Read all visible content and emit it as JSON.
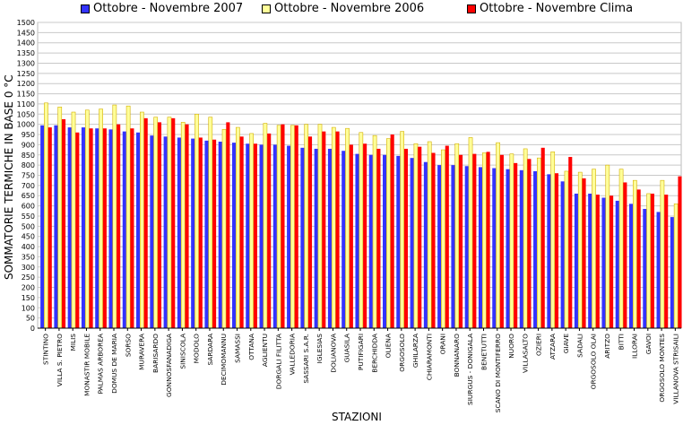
{
  "chart_data": {
    "type": "bar",
    "title": "",
    "xlabel": "STAZIONI",
    "ylabel": "SOMMATORIE TERMICHE IN BASE 0 °C",
    "ylim": [
      0,
      1500
    ],
    "yticks": [
      0,
      50,
      100,
      150,
      200,
      250,
      300,
      350,
      400,
      450,
      500,
      550,
      600,
      650,
      700,
      750,
      800,
      850,
      900,
      950,
      1000,
      1050,
      1100,
      1150,
      1200,
      1250,
      1300,
      1350,
      1400,
      1450,
      1500
    ],
    "grid": true,
    "legend": "top",
    "categories": [
      "STINTINO",
      "VILLA S. PIETRO",
      "MILIS",
      "MONASTIR MOBILE",
      "PALMAS ARBOREA",
      "DOMUS DE MARIA",
      "SORSO",
      "MURAVERA",
      "BARISARDO",
      "GONNOSFANADIGA",
      "SINISCOLA",
      "MODOLO",
      "SARDARA",
      "DECIMOMANNU",
      "SAMASSI",
      "OTTANA",
      "AGLIENTU",
      "DORGALI FILITTA",
      "VALLEDORIA",
      "SASSARI S.A.R.",
      "IGLESIAS",
      "DOLIANOVA",
      "GUASILA",
      "PUTIFIGARI",
      "BERCHIDDA",
      "OLIENA",
      "ORGOSOLO",
      "GHILARZA",
      "CHIARAMONTI",
      "ORANI",
      "BONNANARO",
      "SIURGUS - DONIGALA",
      "BENETUTTI",
      "SCANO DI MONTIFERRO",
      "NUORO",
      "VILLASALTO",
      "OZIERI",
      "ATZARA",
      "GIAVE",
      "SADALI",
      "ORGOSOLO OLAI",
      "ARITZO",
      "BITTI",
      "ILLORAI",
      "GAVOI",
      "ORGOSOLO MONTES",
      "VILLANOVA STRISAILI"
    ],
    "series": [
      {
        "name": "Ottobre - Novembre 2007",
        "color": "#3333ff",
        "values": [
          995,
          995,
          985,
          985,
          980,
          975,
          965,
          960,
          945,
          940,
          935,
          930,
          920,
          915,
          910,
          905,
          900,
          900,
          895,
          885,
          880,
          880,
          870,
          855,
          850,
          850,
          845,
          835,
          815,
          800,
          800,
          795,
          790,
          785,
          780,
          775,
          770,
          755,
          720,
          660,
          660,
          640,
          625,
          610,
          585,
          570,
          545
        ]
      },
      {
        "name": "Ottobre - Novembre 2006",
        "color": "#ffff99",
        "values": [
          1105,
          1085,
          1060,
          1070,
          1075,
          1095,
          1090,
          1060,
          1035,
          1035,
          1010,
          1050,
          1035,
          975,
          985,
          955,
          1005,
          995,
          995,
          1000,
          1000,
          985,
          980,
          960,
          945,
          930,
          965,
          905,
          915,
          875,
          905,
          935,
          860,
          910,
          855,
          880,
          835,
          865,
          770,
          765,
          780,
          800,
          780,
          725,
          660,
          725,
          610
        ]
      },
      {
        "name": "Ottobre - Novembre Clima",
        "color": "#ff0000",
        "values": [
          985,
          1025,
          960,
          980,
          980,
          1000,
          980,
          1030,
          1010,
          1030,
          1000,
          935,
          925,
          1010,
          940,
          905,
          955,
          1000,
          995,
          940,
          965,
          965,
          900,
          905,
          880,
          950,
          880,
          890,
          860,
          895,
          850,
          855,
          865,
          850,
          810,
          830,
          885,
          760,
          840,
          735,
          655,
          650,
          715,
          680,
          660,
          655,
          745
        ]
      }
    ]
  }
}
